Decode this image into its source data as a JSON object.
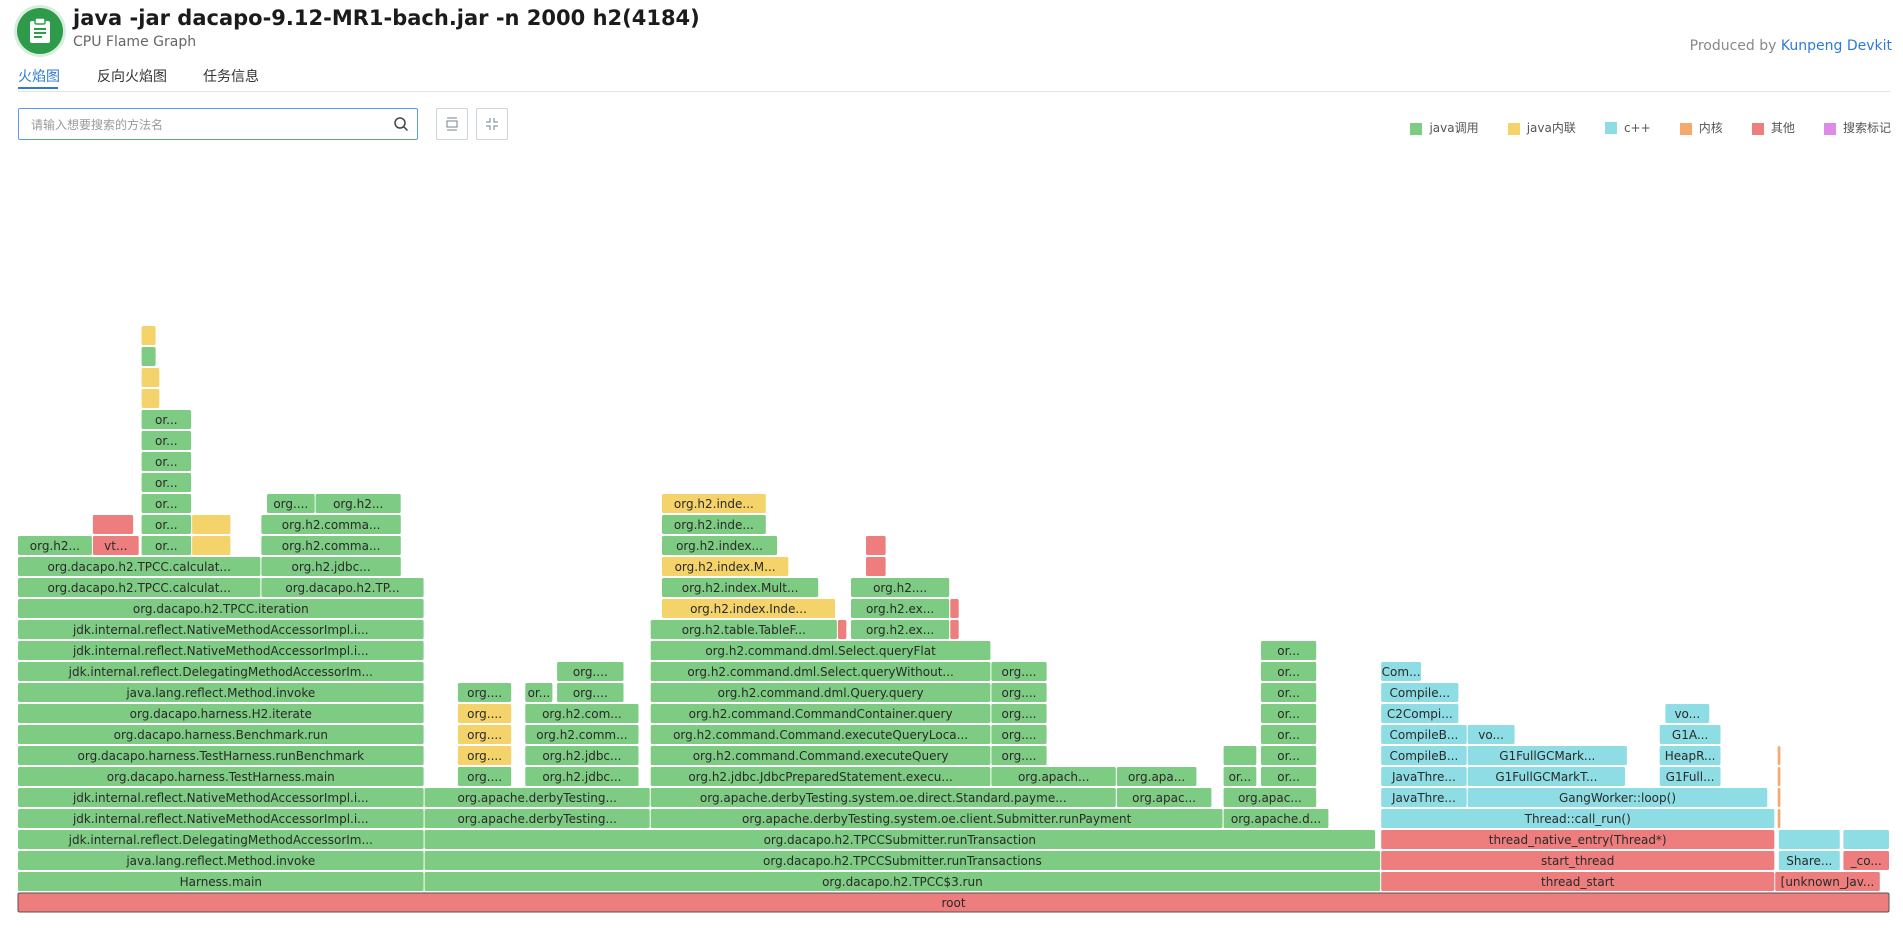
{
  "header": {
    "title": "java -jar dacapo-9.12-MR1-bach.jar -n 2000 h2(4184)",
    "subtitle": "CPU Flame Graph",
    "produced_prefix": "Produced by",
    "produced_link": "Kunpeng Devkit",
    "logo_icon": "clipboard-icon"
  },
  "tabs": [
    {
      "label": "火焰图",
      "active": true
    },
    {
      "label": "反向火焰图",
      "active": false
    },
    {
      "label": "任务信息",
      "active": false
    }
  ],
  "search": {
    "placeholder": "请输入想要搜索的方法名",
    "value": "",
    "icon": "search-icon"
  },
  "toolbar": {
    "buttons": [
      {
        "icon": "expand-icon"
      },
      {
        "icon": "collapse-icon"
      }
    ]
  },
  "legend": [
    {
      "label": "java调用",
      "color": "#7ecb83"
    },
    {
      "label": "java内联",
      "color": "#f3d36a"
    },
    {
      "label": "c++",
      "color": "#8fdde4"
    },
    {
      "label": "内核",
      "color": "#f5a96f"
    },
    {
      "label": "其他",
      "color": "#ee7d7d"
    },
    {
      "label": "搜索标记",
      "color": "#de8be8"
    }
  ],
  "flame": {
    "colors": {
      "j": "#7ecb83",
      "i": "#f3d36a",
      "c": "#8fdde4",
      "k": "#f5a96f",
      "o": "#ee7d7d"
    },
    "frames": [
      {
        "d": 0,
        "x0": 0,
        "x1": 1,
        "t": "o",
        "l": "root"
      },
      {
        "d": 1,
        "x0": 0,
        "x1": 0.2172,
        "t": "j",
        "l": "Harness.main"
      },
      {
        "d": 1,
        "x0": 0.2172,
        "x1": 0.7282,
        "t": "j",
        "l": "org.dacapo.h2.TPCC$3.run"
      },
      {
        "d": 1,
        "x0": 0.7282,
        "x1": 0.9387,
        "t": "o",
        "l": "thread_start"
      },
      {
        "d": 1,
        "x0": 0.9387,
        "x1": 0.9951,
        "t": "o",
        "l": "[unknown_Jav..."
      },
      {
        "d": 2,
        "x0": 0,
        "x1": 0.2172,
        "t": "j",
        "l": "java.lang.reflect.Method.invoke"
      },
      {
        "d": 2,
        "x0": 0.2172,
        "x1": 0.7282,
        "t": "j",
        "l": "org.dacapo.h2.TPCCSubmitter.runTransactions"
      },
      {
        "d": 2,
        "x0": 0.7282,
        "x1": 0.9387,
        "t": "o",
        "l": "start_thread"
      },
      {
        "d": 2,
        "x0": 0.9406,
        "x1": 0.9737,
        "t": "c",
        "l": "Share..."
      },
      {
        "d": 2,
        "x0": 0.9751,
        "x1": 1.0,
        "t": "o",
        "l": "_co..."
      },
      {
        "d": 3,
        "x0": 0,
        "x1": 0.2172,
        "t": "j",
        "l": "jdk.internal.reflect.DelegatingMethodAccessorIm..."
      },
      {
        "d": 3,
        "x0": 0.2172,
        "x1": 0.7254,
        "t": "j",
        "l": "org.dacapo.h2.TPCCSubmitter.runTransaction"
      },
      {
        "d": 3,
        "x0": 0.7282,
        "x1": 0.9387,
        "t": "o",
        "l": "thread_native_entry(Thread*)"
      },
      {
        "d": 3,
        "x0": 0.9406,
        "x1": 0.9737,
        "t": "c",
        "l": ""
      },
      {
        "d": 3,
        "x0": 0.9751,
        "x1": 1.0,
        "t": "c",
        "l": ""
      },
      {
        "d": 4,
        "x0": 0,
        "x1": 0.2172,
        "t": "j",
        "l": "jdk.internal.reflect.NativeMethodAccessorImpl.i..."
      },
      {
        "d": 4,
        "x0": 0.2172,
        "x1": 0.338,
        "t": "j",
        "l": "org.apache.derbyTesting..."
      },
      {
        "d": 4,
        "x0": 0.338,
        "x1": 0.644,
        "t": "j",
        "l": "org.apache.derbyTesting.system.oe.client.Submitter.runPayment"
      },
      {
        "d": 4,
        "x0": 0.644,
        "x1": 0.7005,
        "t": "j",
        "l": "org.apache.d..."
      },
      {
        "d": 4,
        "x0": 0.7282,
        "x1": 0.9387,
        "t": "c",
        "l": "Thread::call_run()"
      },
      {
        "d": 4,
        "x0": 0.94,
        "x1": 0.942,
        "t": "k",
        "l": ""
      },
      {
        "d": 5,
        "x0": 0,
        "x1": 0.2172,
        "t": "j",
        "l": "jdk.internal.reflect.NativeMethodAccessorImpl.i..."
      },
      {
        "d": 5,
        "x0": 0.2172,
        "x1": 0.338,
        "t": "j",
        "l": "org.apache.derbyTesting..."
      },
      {
        "d": 5,
        "x0": 0.338,
        "x1": 0.587,
        "t": "j",
        "l": "org.apache.derbyTesting.system.oe.direct.Standard.payme..."
      },
      {
        "d": 5,
        "x0": 0.587,
        "x1": 0.638,
        "t": "j",
        "l": "org.apac..."
      },
      {
        "d": 5,
        "x0": 0.644,
        "x1": 0.694,
        "t": "j",
        "l": "org.apac..."
      },
      {
        "d": 5,
        "x0": 0.7282,
        "x1": 0.7744,
        "t": "c",
        "l": "JavaThre..."
      },
      {
        "d": 5,
        "x0": 0.7744,
        "x1": 0.935,
        "t": "c",
        "l": "GangWorker::loop()"
      },
      {
        "d": 5,
        "x0": 0.94,
        "x1": 0.942,
        "t": "k",
        "l": ""
      },
      {
        "d": 6,
        "x0": 0,
        "x1": 0.2172,
        "t": "j",
        "l": "org.dacapo.harness.TestHarness.main"
      },
      {
        "d": 6,
        "x0": 0.235,
        "x1": 0.264,
        "t": "j",
        "l": "org...."
      },
      {
        "d": 6,
        "x0": 0.271,
        "x1": 0.332,
        "t": "j",
        "l": "org.h2.jdbc..."
      },
      {
        "d": 6,
        "x0": 0.338,
        "x1": 0.52,
        "t": "j",
        "l": "org.h2.jdbc.JdbcPreparedStatement.execu..."
      },
      {
        "d": 6,
        "x0": 0.52,
        "x1": 0.587,
        "t": "j",
        "l": "org.apach..."
      },
      {
        "d": 6,
        "x0": 0.587,
        "x1": 0.63,
        "t": "j",
        "l": "org.apa..."
      },
      {
        "d": 6,
        "x0": 0.644,
        "x1": 0.662,
        "t": "j",
        "l": "or..."
      },
      {
        "d": 6,
        "x0": 0.664,
        "x1": 0.694,
        "t": "j",
        "l": "or..."
      },
      {
        "d": 6,
        "x0": 0.7282,
        "x1": 0.7744,
        "t": "c",
        "l": "JavaThre..."
      },
      {
        "d": 6,
        "x0": 0.7744,
        "x1": 0.859,
        "t": "c",
        "l": "G1FullGCMarkT..."
      },
      {
        "d": 6,
        "x0": 0.877,
        "x1": 0.91,
        "t": "c",
        "l": "G1Full..."
      },
      {
        "d": 6,
        "x0": 0.94,
        "x1": 0.942,
        "t": "k",
        "l": ""
      },
      {
        "d": 7,
        "x0": 0,
        "x1": 0.2172,
        "t": "j",
        "l": "org.dacapo.harness.TestHarness.runBenchmark"
      },
      {
        "d": 7,
        "x0": 0.235,
        "x1": 0.264,
        "t": "i",
        "l": "org...."
      },
      {
        "d": 7,
        "x0": 0.271,
        "x1": 0.332,
        "t": "j",
        "l": "org.h2.jdbc..."
      },
      {
        "d": 7,
        "x0": 0.338,
        "x1": 0.52,
        "t": "j",
        "l": "org.h2.command.Command.executeQuery"
      },
      {
        "d": 7,
        "x0": 0.52,
        "x1": 0.55,
        "t": "j",
        "l": "org...."
      },
      {
        "d": 7,
        "x0": 0.644,
        "x1": 0.662,
        "t": "j",
        "l": ""
      },
      {
        "d": 7,
        "x0": 0.664,
        "x1": 0.694,
        "t": "j",
        "l": "or..."
      },
      {
        "d": 7,
        "x0": 0.7282,
        "x1": 0.7744,
        "t": "c",
        "l": "CompileB..."
      },
      {
        "d": 7,
        "x0": 0.7744,
        "x1": 0.86,
        "t": "c",
        "l": "G1FullGCMark..."
      },
      {
        "d": 7,
        "x0": 0.877,
        "x1": 0.91,
        "t": "c",
        "l": "HeapR..."
      },
      {
        "d": 7,
        "x0": 0.94,
        "x1": 0.942,
        "t": "k",
        "l": ""
      },
      {
        "d": 8,
        "x0": 0,
        "x1": 0.2172,
        "t": "j",
        "l": "org.dacapo.harness.Benchmark.run"
      },
      {
        "d": 8,
        "x0": 0.235,
        "x1": 0.264,
        "t": "i",
        "l": "org...."
      },
      {
        "d": 8,
        "x0": 0.271,
        "x1": 0.332,
        "t": "j",
        "l": "org.h2.comm..."
      },
      {
        "d": 8,
        "x0": 0.338,
        "x1": 0.52,
        "t": "j",
        "l": "org.h2.command.Command.executeQueryLoca..."
      },
      {
        "d": 8,
        "x0": 0.52,
        "x1": 0.55,
        "t": "j",
        "l": "org...."
      },
      {
        "d": 8,
        "x0": 0.664,
        "x1": 0.694,
        "t": "j",
        "l": "or..."
      },
      {
        "d": 8,
        "x0": 0.7282,
        "x1": 0.7744,
        "t": "c",
        "l": "CompileB..."
      },
      {
        "d": 8,
        "x0": 0.7744,
        "x1": 0.8,
        "t": "c",
        "l": "vo..."
      },
      {
        "d": 8,
        "x0": 0.877,
        "x1": 0.91,
        "t": "c",
        "l": "G1A..."
      },
      {
        "d": 9,
        "x0": 0,
        "x1": 0.2172,
        "t": "j",
        "l": "org.dacapo.harness.H2.iterate"
      },
      {
        "d": 9,
        "x0": 0.235,
        "x1": 0.264,
        "t": "i",
        "l": "org...."
      },
      {
        "d": 9,
        "x0": 0.271,
        "x1": 0.332,
        "t": "j",
        "l": "org.h2.com..."
      },
      {
        "d": 9,
        "x0": 0.338,
        "x1": 0.52,
        "t": "j",
        "l": "org.h2.command.CommandContainer.query"
      },
      {
        "d": 9,
        "x0": 0.52,
        "x1": 0.55,
        "t": "j",
        "l": "org...."
      },
      {
        "d": 9,
        "x0": 0.664,
        "x1": 0.694,
        "t": "j",
        "l": "or..."
      },
      {
        "d": 9,
        "x0": 0.7282,
        "x1": 0.77,
        "t": "c",
        "l": "C2Compi..."
      },
      {
        "d": 9,
        "x0": 0.88,
        "x1": 0.904,
        "t": "c",
        "l": "vo..."
      },
      {
        "d": 10,
        "x0": 0,
        "x1": 0.2172,
        "t": "j",
        "l": "java.lang.reflect.Method.invoke"
      },
      {
        "d": 10,
        "x0": 0.235,
        "x1": 0.264,
        "t": "j",
        "l": "org...."
      },
      {
        "d": 10,
        "x0": 0.271,
        "x1": 0.286,
        "t": "j",
        "l": "or..."
      },
      {
        "d": 10,
        "x0": 0.288,
        "x1": 0.324,
        "t": "j",
        "l": "org...."
      },
      {
        "d": 10,
        "x0": 0.338,
        "x1": 0.52,
        "t": "j",
        "l": "org.h2.command.dml.Query.query"
      },
      {
        "d": 10,
        "x0": 0.52,
        "x1": 0.55,
        "t": "j",
        "l": "org...."
      },
      {
        "d": 10,
        "x0": 0.664,
        "x1": 0.694,
        "t": "j",
        "l": "or..."
      },
      {
        "d": 10,
        "x0": 0.7282,
        "x1": 0.77,
        "t": "c",
        "l": "Compile..."
      },
      {
        "d": 11,
        "x0": 0,
        "x1": 0.2172,
        "t": "j",
        "l": "jdk.internal.reflect.DelegatingMethodAccessorIm..."
      },
      {
        "d": 11,
        "x0": 0.288,
        "x1": 0.324,
        "t": "j",
        "l": "org...."
      },
      {
        "d": 11,
        "x0": 0.338,
        "x1": 0.52,
        "t": "j",
        "l": "org.h2.command.dml.Select.queryWithout..."
      },
      {
        "d": 11,
        "x0": 0.52,
        "x1": 0.55,
        "t": "j",
        "l": "org...."
      },
      {
        "d": 11,
        "x0": 0.664,
        "x1": 0.694,
        "t": "j",
        "l": "or..."
      },
      {
        "d": 11,
        "x0": 0.7282,
        "x1": 0.75,
        "t": "c",
        "l": "Com..."
      },
      {
        "d": 12,
        "x0": 0,
        "x1": 0.2172,
        "t": "j",
        "l": "jdk.internal.reflect.NativeMethodAccessorImpl.i..."
      },
      {
        "d": 12,
        "x0": 0.338,
        "x1": 0.52,
        "t": "j",
        "l": "org.h2.command.dml.Select.queryFlat"
      },
      {
        "d": 12,
        "x0": 0.664,
        "x1": 0.694,
        "t": "j",
        "l": "or..."
      },
      {
        "d": 13,
        "x0": 0,
        "x1": 0.2172,
        "t": "j",
        "l": "jdk.internal.reflect.NativeMethodAccessorImpl.i..."
      },
      {
        "d": 13,
        "x0": 0.338,
        "x1": 0.438,
        "t": "j",
        "l": "org.h2.table.TableF..."
      },
      {
        "d": 13,
        "x0": 0.438,
        "x1": 0.443,
        "t": "o",
        "l": ""
      },
      {
        "d": 13,
        "x0": 0.445,
        "x1": 0.498,
        "t": "j",
        "l": "org.h2.ex..."
      },
      {
        "d": 13,
        "x0": 0.498,
        "x1": 0.503,
        "t": "o",
        "l": ""
      },
      {
        "d": 14,
        "x0": 0,
        "x1": 0.2172,
        "t": "j",
        "l": "org.dacapo.h2.TPCC.iteration"
      },
      {
        "d": 14,
        "x0": 0.344,
        "x1": 0.437,
        "t": "i",
        "l": "org.h2.index.Inde..."
      },
      {
        "d": 14,
        "x0": 0.445,
        "x1": 0.498,
        "t": "j",
        "l": "org.h2.ex..."
      },
      {
        "d": 14,
        "x0": 0.498,
        "x1": 0.503,
        "t": "o",
        "l": ""
      },
      {
        "d": 15,
        "x0": 0,
        "x1": 0.13,
        "t": "j",
        "l": "org.dacapo.h2.TPCC.calculat..."
      },
      {
        "d": 15,
        "x0": 0.13,
        "x1": 0.2172,
        "t": "j",
        "l": "org.dacapo.h2.TP..."
      },
      {
        "d": 15,
        "x0": 0.344,
        "x1": 0.428,
        "t": "j",
        "l": "org.h2.index.Mult..."
      },
      {
        "d": 15,
        "x0": 0.445,
        "x1": 0.498,
        "t": "j",
        "l": "org.h2...."
      },
      {
        "d": 16,
        "x0": 0,
        "x1": 0.13,
        "t": "j",
        "l": "org.dacapo.h2.TPCC.calculat..."
      },
      {
        "d": 16,
        "x0": 0.13,
        "x1": 0.205,
        "t": "j",
        "l": "org.h2.jdbc..."
      },
      {
        "d": 16,
        "x0": 0.344,
        "x1": 0.412,
        "t": "i",
        "l": "org.h2.index.M..."
      },
      {
        "d": 16,
        "x0": 0.453,
        "x1": 0.464,
        "t": "o",
        "l": ""
      },
      {
        "d": 17,
        "x0": 0,
        "x1": 0.04,
        "t": "j",
        "l": "org.h2..."
      },
      {
        "d": 17,
        "x0": 0.04,
        "x1": 0.065,
        "t": "o",
        "l": "vt..."
      },
      {
        "d": 17,
        "x0": 0.066,
        "x1": 0.093,
        "t": "j",
        "l": "or..."
      },
      {
        "d": 17,
        "x0": 0.093,
        "x1": 0.114,
        "t": "i",
        "l": ""
      },
      {
        "d": 17,
        "x0": 0.13,
        "x1": 0.205,
        "t": "j",
        "l": "org.h2.comma..."
      },
      {
        "d": 17,
        "x0": 0.344,
        "x1": 0.406,
        "t": "j",
        "l": "org.h2.index..."
      },
      {
        "d": 17,
        "x0": 0.453,
        "x1": 0.464,
        "t": "o",
        "l": ""
      },
      {
        "d": 18,
        "x0": 0.04,
        "x1": 0.062,
        "t": "o",
        "l": ""
      },
      {
        "d": 18,
        "x0": 0.066,
        "x1": 0.093,
        "t": "j",
        "l": "or..."
      },
      {
        "d": 18,
        "x0": 0.093,
        "x1": 0.114,
        "t": "i",
        "l": ""
      },
      {
        "d": 18,
        "x0": 0.13,
        "x1": 0.205,
        "t": "j",
        "l": "org.h2.comma..."
      },
      {
        "d": 18,
        "x0": 0.344,
        "x1": 0.4,
        "t": "j",
        "l": "org.h2.inde..."
      },
      {
        "d": 19,
        "x0": 0.066,
        "x1": 0.093,
        "t": "j",
        "l": "or..."
      },
      {
        "d": 19,
        "x0": 0.133,
        "x1": 0.159,
        "t": "j",
        "l": "org...."
      },
      {
        "d": 19,
        "x0": 0.159,
        "x1": 0.205,
        "t": "j",
        "l": "org.h2..."
      },
      {
        "d": 19,
        "x0": 0.344,
        "x1": 0.4,
        "t": "i",
        "l": "org.h2.inde..."
      },
      {
        "d": 20,
        "x0": 0.066,
        "x1": 0.093,
        "t": "j",
        "l": "or..."
      },
      {
        "d": 21,
        "x0": 0.066,
        "x1": 0.093,
        "t": "j",
        "l": "or..."
      },
      {
        "d": 22,
        "x0": 0.066,
        "x1": 0.093,
        "t": "j",
        "l": "or..."
      },
      {
        "d": 23,
        "x0": 0.066,
        "x1": 0.093,
        "t": "j",
        "l": "or..."
      },
      {
        "d": 24,
        "x0": 0.066,
        "x1": 0.076,
        "t": "i",
        "l": ""
      },
      {
        "d": 25,
        "x0": 0.066,
        "x1": 0.076,
        "t": "i",
        "l": ""
      },
      {
        "d": 26,
        "x0": 0.066,
        "x1": 0.074,
        "t": "j",
        "l": ""
      },
      {
        "d": 27,
        "x0": 0.066,
        "x1": 0.074,
        "t": "i",
        "l": ""
      }
    ]
  }
}
